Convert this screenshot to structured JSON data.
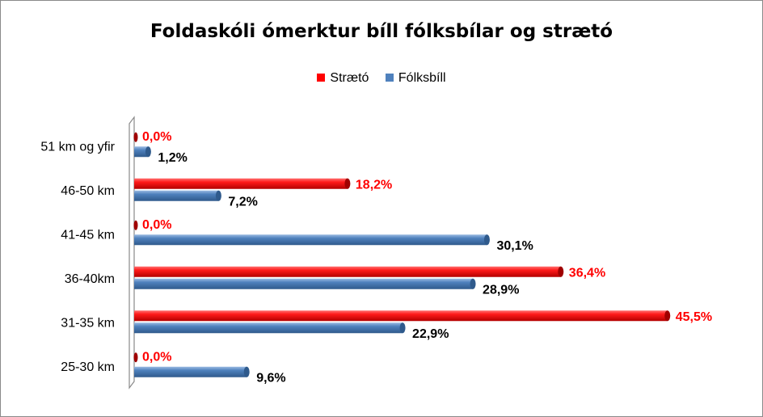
{
  "chart_data": {
    "type": "bar",
    "orientation": "horizontal",
    "title": "Foldaskóli ómerktur bíll fólksbílar og strætó",
    "legend_position": "top",
    "categories": [
      "25-30 km",
      "31-35 km",
      "36-40km",
      "41-45 km",
      "46-50 km",
      "51 km og yfir"
    ],
    "series": [
      {
        "name": "Strætó",
        "color": "#ff0000",
        "label_color": "#ff0000",
        "values": [
          0.0,
          45.5,
          36.4,
          0.0,
          18.2,
          0.0
        ],
        "value_labels": [
          "0,0%",
          "45,5%",
          "36,4%",
          "0,0%",
          "18,2%",
          "0,0%"
        ]
      },
      {
        "name": "Fólksbíll",
        "color": "#4f81bd",
        "label_color": "#000000",
        "values": [
          9.6,
          22.9,
          28.9,
          30.1,
          7.2,
          1.2
        ],
        "value_labels": [
          "9,6%",
          "22,9%",
          "28,9%",
          "30,1%",
          "7,2%",
          "1,2%"
        ]
      }
    ],
    "xlim": [
      0,
      50
    ],
    "grid": false,
    "axis_tick_labels_visible": false
  }
}
